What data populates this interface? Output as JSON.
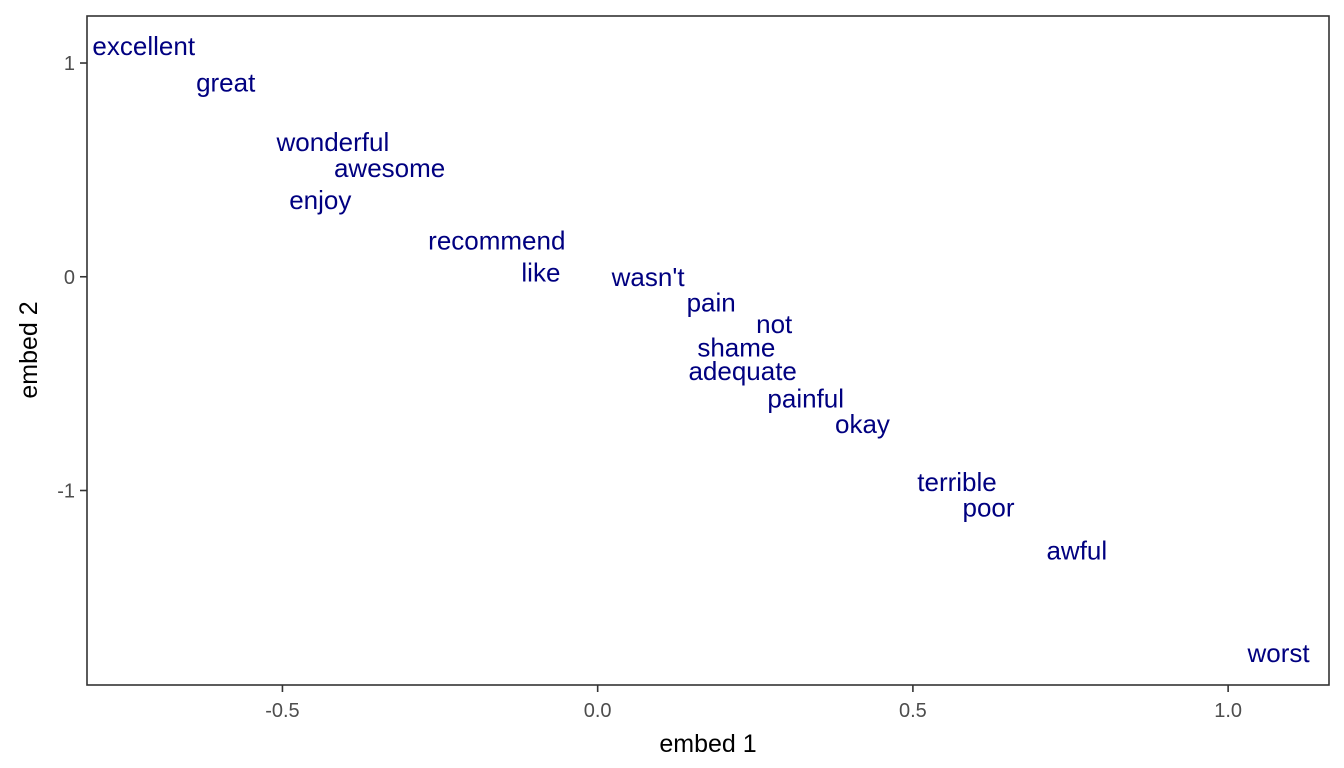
{
  "chart_data": {
    "type": "scatter",
    "mark": "text",
    "xlabel": "embed 1",
    "ylabel": "embed 2",
    "xlim": [
      -0.81,
      1.16
    ],
    "ylim": [
      -1.91,
      1.22
    ],
    "xticks": [
      -0.5,
      0.0,
      0.5,
      1.0
    ],
    "xtick_labels": [
      "-0.5",
      "0.0",
      "0.5",
      "1.0"
    ],
    "yticks": [
      -1,
      0,
      1
    ],
    "ytick_labels": [
      "-1",
      "0",
      "1"
    ],
    "grid": false,
    "legend": "none",
    "text_color": "#000080",
    "points": [
      {
        "label": "excellent",
        "x": -0.72,
        "y": 1.08
      },
      {
        "label": "great",
        "x": -0.59,
        "y": 0.91
      },
      {
        "label": "wonderful",
        "x": -0.42,
        "y": 0.63
      },
      {
        "label": "awesome",
        "x": -0.33,
        "y": 0.51
      },
      {
        "label": "enjoy",
        "x": -0.44,
        "y": 0.36
      },
      {
        "label": "recommend",
        "x": -0.16,
        "y": 0.17
      },
      {
        "label": "like",
        "x": -0.09,
        "y": 0.02
      },
      {
        "label": "wasn't",
        "x": 0.08,
        "y": 0.0
      },
      {
        "label": "pain",
        "x": 0.18,
        "y": -0.12
      },
      {
        "label": "not",
        "x": 0.28,
        "y": -0.22
      },
      {
        "label": "shame",
        "x": 0.22,
        "y": -0.33
      },
      {
        "label": "adequate",
        "x": 0.23,
        "y": -0.44
      },
      {
        "label": "painful",
        "x": 0.33,
        "y": -0.57
      },
      {
        "label": "okay",
        "x": 0.42,
        "y": -0.69
      },
      {
        "label": "terrible",
        "x": 0.57,
        "y": -0.96
      },
      {
        "label": "poor",
        "x": 0.62,
        "y": -1.08
      },
      {
        "label": "awful",
        "x": 0.76,
        "y": -1.28
      },
      {
        "label": "worst",
        "x": 1.08,
        "y": -1.76
      }
    ]
  }
}
